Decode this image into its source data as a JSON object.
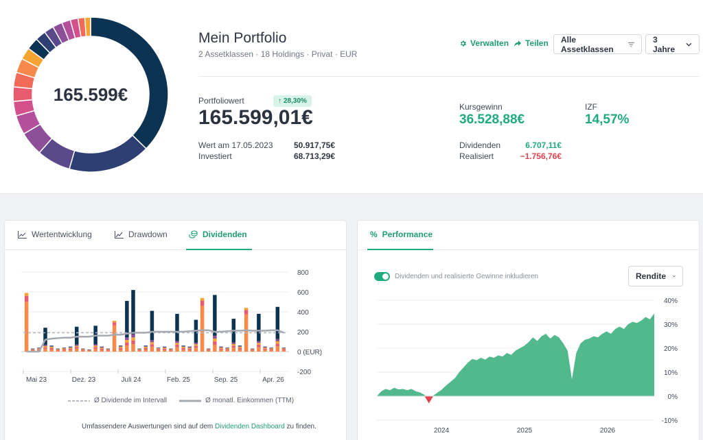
{
  "portfolio": {
    "center_value": "165.599€",
    "title": "Mein Portfolio",
    "subtitle": "2 Assetklassen · 18 Holdings · Privat · EUR",
    "donut_colors": [
      "#0d3352",
      "#2e3f74",
      "#5b4a8b",
      "#8e4f99",
      "#b4509b",
      "#d4508a",
      "#e85a6e",
      "#f26b58",
      "#f7894a",
      "#f5a431",
      "#0d3352",
      "#2e3f74",
      "#5b4a8b",
      "#8e4f99",
      "#b4509b",
      "#d4508a",
      "#f26b58",
      "#f5a431"
    ],
    "donut_values": [
      37,
      17,
      7,
      5,
      4,
      3,
      3,
      3,
      3,
      2.5,
      2.5,
      2.2,
      2,
      2,
      1.8,
      1.6,
      1.4,
      1.2
    ]
  },
  "toolbar": {
    "manage_label": "Verwalten",
    "share_label": "Teilen",
    "assetclass_label": "Alle Assetklassen",
    "range_label": "3 Jahre"
  },
  "stats": {
    "portfolio_value_label": "Portfoliowert",
    "portfolio_value": "165.599,01€",
    "change_badge": "28,30%",
    "value_at_label": "Wert am 17.05.2023",
    "value_at": "50.917,75€",
    "invested_label": "Investiert",
    "invested": "68.713,29€",
    "price_gain_label": "Kursgewinn",
    "price_gain": "36.528,88€",
    "izf_label": "IZF",
    "izf": "14,57%",
    "dividends_label": "Dividenden",
    "dividends": "6.707,11€",
    "realized_label": "Realisiert",
    "realized": "−1.756,76€"
  },
  "left_card": {
    "tabs": [
      "Wertentwicklung",
      "Drawdown",
      "Dividenden"
    ],
    "active_tab": 2,
    "legend_interval": "Ø Dividende im Intervall",
    "legend_ttm": "Ø monatl. Einkommen (TTM)",
    "footer_text": "Umfassendere Auswertungen sind auf dem",
    "footer_link": "Dividenden Dashboard",
    "footer_suffix": "zu finden."
  },
  "right_card": {
    "tab": "Performance",
    "toggle_label": "Dividenden und realisierte Gewinne inkludieren",
    "toggle_on": true,
    "select_label": "Rendite"
  },
  "chart_data": [
    {
      "type": "bar",
      "title": "Dividenden",
      "ylabel": "(EUR)",
      "ylim": [
        -200,
        800
      ],
      "yticks": [
        "800",
        "600",
        "400",
        "200",
        "0 (EUR)",
        "-200"
      ],
      "xticks": [
        "Mai 23",
        "Dez. 23",
        "Juli 24",
        "Feb. 25",
        "Sep. 25",
        "Apr. 26"
      ],
      "colors": [
        "#f7894a",
        "#e85a6e",
        "#f5a431",
        "#8e4f99",
        "#0d3352"
      ],
      "values": [
        590,
        30,
        40,
        240,
        60,
        30,
        40,
        50,
        250,
        30,
        20,
        260,
        50,
        30,
        310,
        60,
        510,
        620,
        30,
        60,
        410,
        40,
        50,
        30,
        380,
        60,
        50,
        320,
        540,
        30,
        570,
        50,
        40,
        330,
        60,
        440,
        30,
        380,
        50,
        40,
        450,
        40
      ],
      "avg_interval": 190,
      "ttm_line": [
        0,
        0,
        0,
        120,
        130,
        135,
        140,
        140,
        150,
        150,
        150,
        160,
        160,
        160,
        170,
        170,
        180,
        190,
        190,
        190,
        200,
        200,
        200,
        200,
        200,
        200,
        205,
        210,
        215,
        215,
        200,
        200,
        205,
        210,
        210,
        215,
        210,
        210,
        210,
        215,
        215,
        190
      ]
    },
    {
      "type": "area",
      "title": "Performance",
      "ylim": [
        -10,
        40
      ],
      "yticks": [
        "40%",
        "30%",
        "20%",
        "10%",
        "0%",
        "-10%"
      ],
      "xticks": [
        "2024",
        "2025",
        "2026"
      ],
      "series": [
        {
          "values": [
            0,
            2,
            3,
            2.5,
            3.5,
            2.8,
            3,
            2.5,
            3,
            2,
            1.5,
            0.5,
            -3,
            0.2,
            1.5,
            2.8,
            4.5,
            6,
            7.5,
            10,
            12,
            14,
            15.5,
            15,
            16,
            15.2,
            16.5,
            16,
            17,
            16.5,
            18,
            17.2,
            19,
            20,
            21,
            22.5,
            24.5,
            23,
            25,
            26,
            24,
            25.5,
            24.5,
            22,
            19,
            7,
            18,
            22,
            23.5,
            24,
            25,
            24.5,
            26,
            27,
            26,
            28,
            29,
            28,
            30,
            31,
            30.5,
            31.5,
            33,
            32,
            34.5
          ]
        }
      ]
    }
  ]
}
